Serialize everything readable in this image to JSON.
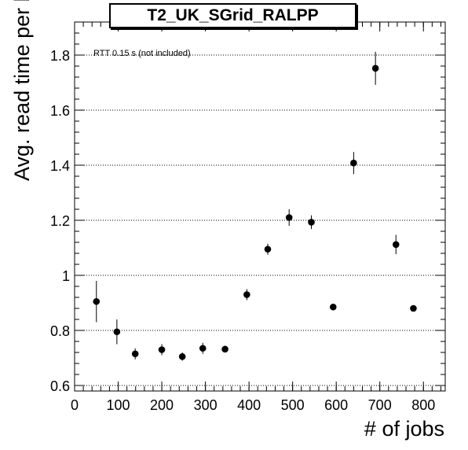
{
  "chart_data": {
    "type": "scatter",
    "title": "T2_UK_SGrid_RALPP",
    "xlabel": "# of jobs",
    "ylabel": "Avg. read time per block [s]",
    "annotation": "RTT 0.15 s (not included)",
    "xlim": [
      0,
      850
    ],
    "ylim": [
      0.58,
      1.92
    ],
    "xticks": [
      0,
      100,
      200,
      300,
      400,
      500,
      600,
      700,
      800
    ],
    "yticks": [
      0.6,
      0.8,
      1.0,
      1.2,
      1.4,
      1.6,
      1.8
    ],
    "ytick_labels": [
      "0.6",
      "0.8",
      "1",
      "1.2",
      "1.4",
      "1.6",
      "1.8"
    ],
    "grid": "horizontal dotted",
    "points": [
      {
        "x": 50,
        "y": 0.905,
        "err": 0.075
      },
      {
        "x": 97,
        "y": 0.795,
        "err": 0.045
      },
      {
        "x": 139,
        "y": 0.715,
        "err": 0.02
      },
      {
        "x": 200,
        "y": 0.73,
        "err": 0.02
      },
      {
        "x": 247,
        "y": 0.705,
        "err": 0.015
      },
      {
        "x": 294,
        "y": 0.735,
        "err": 0.02
      },
      {
        "x": 345,
        "y": 0.732,
        "err": 0.012
      },
      {
        "x": 395,
        "y": 0.93,
        "err": 0.02
      },
      {
        "x": 443,
        "y": 1.095,
        "err": 0.02
      },
      {
        "x": 492,
        "y": 1.21,
        "err": 0.03
      },
      {
        "x": 543,
        "y": 1.193,
        "err": 0.025
      },
      {
        "x": 593,
        "y": 0.885,
        "err": 0.01
      },
      {
        "x": 640,
        "y": 1.408,
        "err": 0.04
      },
      {
        "x": 690,
        "y": 1.752,
        "err": 0.06
      },
      {
        "x": 737,
        "y": 1.112,
        "err": 0.035
      },
      {
        "x": 777,
        "y": 0.88,
        "err": 0.008
      }
    ],
    "colors": {
      "marker": "#000000",
      "grid": "#000000",
      "frame": "#000000"
    }
  }
}
